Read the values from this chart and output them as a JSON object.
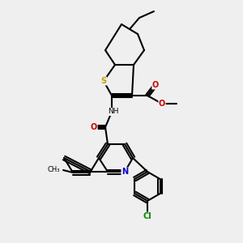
{
  "bg_color": "#efefef",
  "bond_color": "#000000",
  "s_color": "#c8a000",
  "n_color": "#0000cc",
  "o_color": "#cc0000",
  "cl_color": "#00aa00",
  "lw": 1.5,
  "lw2": 1.0,
  "atoms": {
    "S": {
      "color": "#c8a000"
    },
    "N": {
      "color": "#0000cc"
    },
    "O": {
      "color": "#cc0000"
    },
    "Cl": {
      "color": "#008800"
    }
  }
}
